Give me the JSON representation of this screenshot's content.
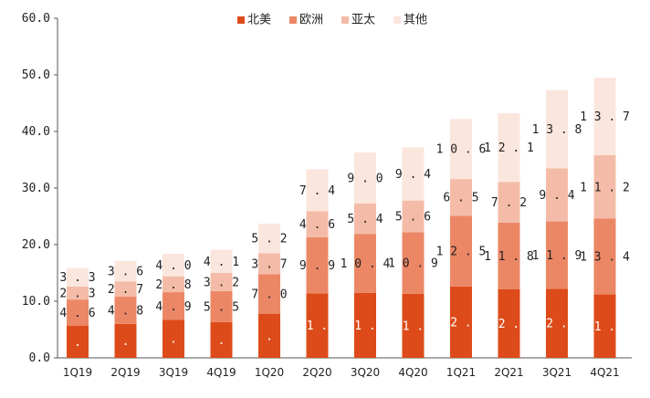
{
  "chart_data": {
    "type": "bar",
    "stacked": true,
    "categories": [
      "1Q19",
      "2Q19",
      "3Q19",
      "4Q19",
      "1Q20",
      "2Q20",
      "3Q20",
      "4Q20",
      "1Q21",
      "2Q21",
      "3Q21",
      "4Q21"
    ],
    "series": [
      {
        "name": "北美",
        "color": "#dd4b1a",
        "label_color": "#ffffff",
        "values": [
          5.7,
          6.0,
          6.7,
          6.3,
          7.8,
          11.4,
          11.5,
          11.3,
          12.6,
          12.1,
          12.2,
          11.2
        ]
      },
      {
        "name": "欧洲",
        "color": "#ec8766",
        "label_color": "#222222",
        "values": [
          4.6,
          4.8,
          4.9,
          5.5,
          7.0,
          9.9,
          10.4,
          10.9,
          12.5,
          11.8,
          11.9,
          13.4
        ]
      },
      {
        "name": "亚太",
        "color": "#f4bca8",
        "label_color": "#222222",
        "values": [
          2.3,
          2.7,
          2.8,
          3.2,
          3.7,
          4.6,
          5.4,
          5.6,
          6.5,
          7.2,
          9.4,
          11.2
        ]
      },
      {
        "name": "其他",
        "color": "#fbe6de",
        "label_color": "#222222",
        "values": [
          3.3,
          3.6,
          4.0,
          4.1,
          5.2,
          7.4,
          9.0,
          9.4,
          10.6,
          12.1,
          13.8,
          13.7
        ]
      }
    ],
    "ylim": [
      0,
      60
    ],
    "yticks": [
      "0.0",
      "10.0",
      "20.0",
      "30.0",
      "40.0",
      "50.0",
      "60.0"
    ],
    "ytick_values": [
      0,
      10,
      20,
      30,
      40,
      50,
      60
    ],
    "label_format": "spaced",
    "legend_position": "top-center",
    "grid": false
  }
}
